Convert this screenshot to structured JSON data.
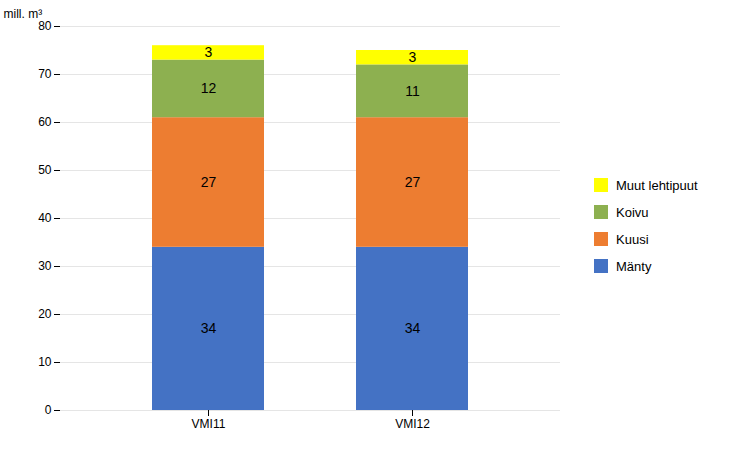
{
  "chart_data": {
    "type": "bar",
    "stacked": true,
    "categories": [
      "VMI11",
      "VMI12"
    ],
    "series": [
      {
        "name": "Mänty",
        "color": "#4472C4",
        "values": [
          34,
          34
        ]
      },
      {
        "name": "Kuusi",
        "color": "#ED7D31",
        "values": [
          27,
          27
        ]
      },
      {
        "name": "Koivu",
        "color": "#8DB050",
        "values": [
          12,
          11
        ]
      },
      {
        "name": "Muut lehtipuut",
        "color": "#FFFF00",
        "values": [
          3,
          3
        ]
      }
    ],
    "ylabel": "mill. m³",
    "ylim": [
      0,
      80
    ],
    "yticks": [
      0,
      10,
      20,
      30,
      40,
      50,
      60,
      70,
      80
    ],
    "grid": true,
    "legend": "right",
    "data_labels": true
  }
}
